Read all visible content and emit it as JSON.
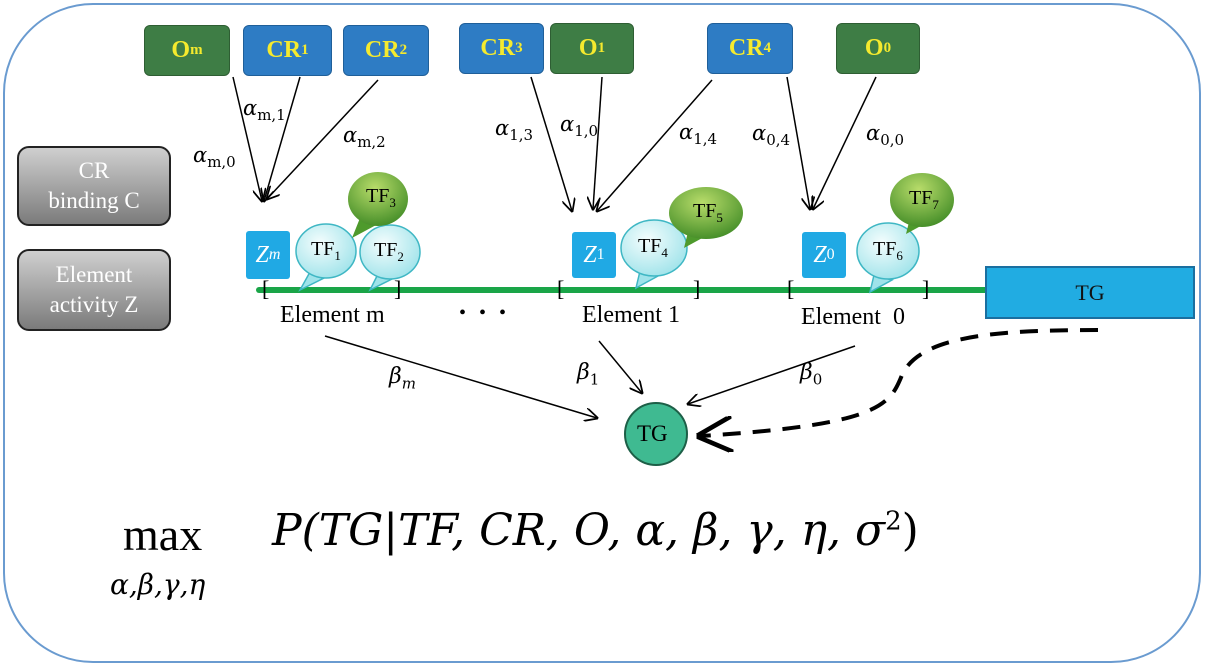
{
  "legend": {
    "cr_binding": [
      "CR",
      "binding C"
    ],
    "element_activity": [
      "Element",
      "activity Z"
    ]
  },
  "top_nodes": [
    {
      "base": "O",
      "sub": "m"
    },
    {
      "base": "CR",
      "sub": "1"
    },
    {
      "base": "CR",
      "sub": "2"
    },
    {
      "base": "CR",
      "sub": "3"
    },
    {
      "base": "O",
      "sub": "1"
    },
    {
      "base": "CR",
      "sub": "4"
    },
    {
      "base": "O",
      "sub": "0"
    }
  ],
  "alpha_labels": [
    {
      "sym": "α",
      "sub": "m,1"
    },
    {
      "sym": "α",
      "sub": "m,2"
    },
    {
      "sym": "α",
      "sub": "m,0"
    },
    {
      "sym": "α",
      "sub": "1,3"
    },
    {
      "sym": "α",
      "sub": "1,0"
    },
    {
      "sym": "α",
      "sub": "1,4"
    },
    {
      "sym": "α",
      "sub": "0,4"
    },
    {
      "sym": "α",
      "sub": "0,0"
    }
  ],
  "z_nodes": [
    {
      "base": "Z",
      "sub": "m"
    },
    {
      "base": "Z",
      "sub": "1"
    },
    {
      "base": "Z",
      "sub": "0"
    }
  ],
  "tf_nodes": [
    {
      "base": "TF",
      "sub": "1"
    },
    {
      "base": "TF",
      "sub": "2"
    },
    {
      "base": "TF",
      "sub": "3"
    },
    {
      "base": "TF",
      "sub": "4"
    },
    {
      "base": "TF",
      "sub": "5"
    },
    {
      "base": "TF",
      "sub": "6"
    },
    {
      "base": "TF",
      "sub": "7"
    }
  ],
  "elements": [
    "Element m",
    "Element 1",
    "Element  0"
  ],
  "ellipsis": "• • •",
  "bracket_left": "[",
  "bracket_right": "]",
  "tg_bar": "TG",
  "tg_node": "TG",
  "beta_labels": [
    {
      "sym": "β",
      "sub": "m"
    },
    {
      "sym": "β",
      "sub": "1"
    },
    {
      "sym": "β",
      "sub": "0"
    }
  ],
  "formula": {
    "max": "max",
    "subscript": "α,β,γ,η",
    "body": "P(TG|TF, CR, O, α, β, γ, η, σ",
    "sup": "2",
    "close": ")"
  },
  "colors": {
    "o_box": "#3e7d45",
    "cr_box": "#2e7cc4",
    "box_text": "#f5ea2e",
    "z_box": "#20a9e4",
    "element_line": "#1aa548",
    "tg_node": "#3fba91",
    "frame": "#6a9bd0"
  }
}
